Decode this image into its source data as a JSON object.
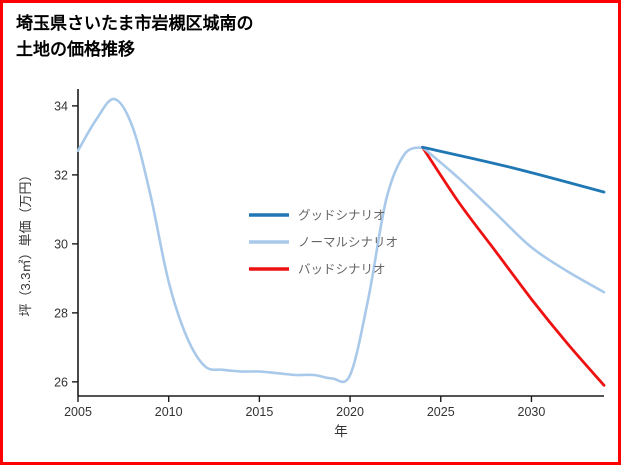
{
  "page": {
    "border_color": "#ff0000",
    "background": "#ffffff"
  },
  "chart_data": {
    "type": "line",
    "title": "埼玉県さいたま市岩槻区城南の土地の価格推移",
    "title_lines": [
      "埼玉県さいたま市岩槻区城南の",
      "土地の価格推移"
    ],
    "xlabel": "年",
    "ylabel": "坪（3.3㎡）単価（万円）",
    "xlim": [
      2005,
      2034
    ],
    "ylim": [
      25.59,
      34.49
    ],
    "xticks": [
      2005,
      2010,
      2015,
      2020,
      2025,
      2030
    ],
    "yticks": [
      26,
      28,
      30,
      32,
      34
    ],
    "grid": false,
    "legend_position": "center",
    "colors": {
      "good": "#1f77b4",
      "normal": "#a9c9ea",
      "bad": "#ee1111",
      "axis": "#1a1a1a",
      "tick_text": "#333333",
      "legend_text": "#666666"
    },
    "legend": {
      "items": [
        {
          "label": "グッドシナリオ",
          "color": "#1f77b4"
        },
        {
          "label": "ノーマルシナリオ",
          "color": "#a9c9ea"
        },
        {
          "label": "バッドシナリオ",
          "color": "#ee1111"
        }
      ]
    },
    "series": [
      {
        "id": "history-normal",
        "name": "ノーマルシナリオ(実績)",
        "color": "#a9c9ea",
        "width": 2.6,
        "x": [
          2005,
          2006,
          2007,
          2008,
          2009,
          2010,
          2011,
          2012,
          2013,
          2014,
          2015,
          2016,
          2017,
          2018,
          2019,
          2020,
          2021,
          2022,
          2023,
          2024
        ],
        "y": [
          32.7,
          33.6,
          34.2,
          33.4,
          31.4,
          28.9,
          27.3,
          26.45,
          26.35,
          26.3,
          26.3,
          26.25,
          26.2,
          26.2,
          26.1,
          26.2,
          28.4,
          31.3,
          32.6,
          32.8
        ]
      },
      {
        "id": "forecast-bad",
        "name": "バッドシナリオ",
        "color": "#ee1111",
        "width": 2.8,
        "x": [
          2024,
          2026,
          2028,
          2030,
          2032,
          2034
        ],
        "y": [
          32.8,
          31.2,
          29.8,
          28.4,
          27.1,
          25.9
        ]
      },
      {
        "id": "forecast-normal",
        "name": "ノーマルシナリオ",
        "color": "#a9c9ea",
        "width": 2.6,
        "x": [
          2024,
          2026,
          2028,
          2030,
          2032,
          2034
        ],
        "y": [
          32.8,
          31.9,
          30.9,
          29.9,
          29.2,
          28.6
        ]
      },
      {
        "id": "forecast-good",
        "name": "グッドシナリオ",
        "color": "#1f77b4",
        "width": 2.8,
        "x": [
          2024,
          2029,
          2034
        ],
        "y": [
          32.8,
          32.2,
          31.5
        ]
      }
    ]
  }
}
